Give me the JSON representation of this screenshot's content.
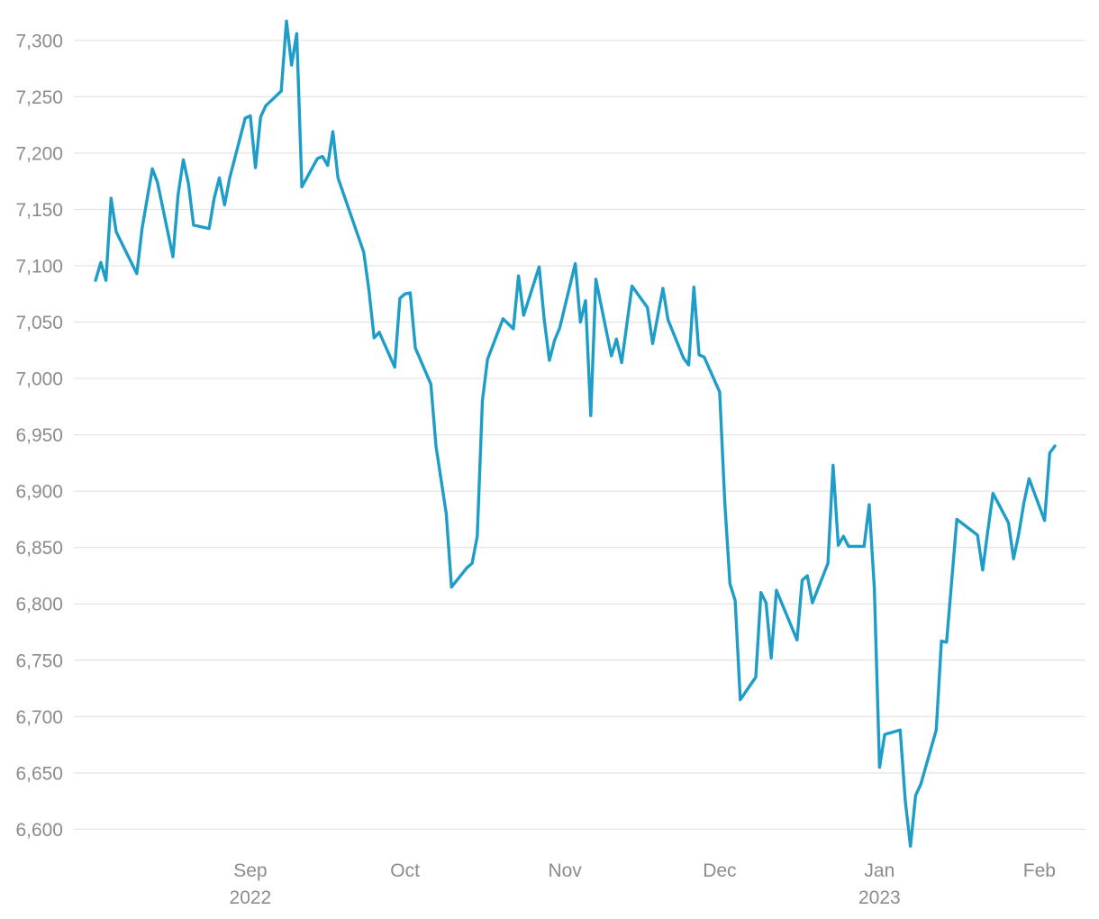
{
  "chart_data": {
    "type": "line",
    "title": "",
    "xlabel": "",
    "ylabel": "",
    "ylim": [
      6585,
      7320
    ],
    "xlim": [
      "2022-08-01",
      "2023-02-07"
    ],
    "grid": true,
    "line_color": "#1f9dc9",
    "y_ticks": [
      "6,600",
      "6,650",
      "6,700",
      "6,750",
      "6,800",
      "6,850",
      "6,900",
      "6,950",
      "7,000",
      "7,050",
      "7,100",
      "7,150",
      "7,200",
      "7,250",
      "7,300"
    ],
    "x_ticks": [
      {
        "date": "2022-09-01",
        "label": "Sep",
        "sublabel": "2022"
      },
      {
        "date": "2022-10-01",
        "label": "Oct",
        "sublabel": ""
      },
      {
        "date": "2022-11-01",
        "label": "Nov",
        "sublabel": ""
      },
      {
        "date": "2022-12-01",
        "label": "Dec",
        "sublabel": ""
      },
      {
        "date": "2023-01-01",
        "label": "Jan",
        "sublabel": "2023"
      },
      {
        "date": "2023-02-01",
        "label": "Feb",
        "sublabel": ""
      }
    ],
    "series": [
      {
        "points": [
          [
            "2022-08-02",
            7087
          ],
          [
            "2022-08-03",
            7103
          ],
          [
            "2022-08-04",
            7087
          ],
          [
            "2022-08-05",
            7160
          ],
          [
            "2022-08-06",
            7130
          ],
          [
            "2022-08-10",
            7093
          ],
          [
            "2022-08-11",
            7133
          ],
          [
            "2022-08-13",
            7186
          ],
          [
            "2022-08-14",
            7174
          ],
          [
            "2022-08-17",
            7108
          ],
          [
            "2022-08-18",
            7163
          ],
          [
            "2022-08-19",
            7194
          ],
          [
            "2022-08-20",
            7173
          ],
          [
            "2022-08-21",
            7136
          ],
          [
            "2022-08-24",
            7133
          ],
          [
            "2022-08-25",
            7160
          ],
          [
            "2022-08-26",
            7178
          ],
          [
            "2022-08-27",
            7154
          ],
          [
            "2022-08-28",
            7178
          ],
          [
            "2022-08-31",
            7231
          ],
          [
            "2022-09-01",
            7233
          ],
          [
            "2022-09-02",
            7187
          ],
          [
            "2022-09-03",
            7232
          ],
          [
            "2022-09-04",
            7242
          ],
          [
            "2022-09-07",
            7255
          ],
          [
            "2022-09-08",
            7317
          ],
          [
            "2022-09-09",
            7278
          ],
          [
            "2022-09-10",
            7306
          ],
          [
            "2022-09-11",
            7170
          ],
          [
            "2022-09-14",
            7195
          ],
          [
            "2022-09-15",
            7197
          ],
          [
            "2022-09-16",
            7189
          ],
          [
            "2022-09-17",
            7219
          ],
          [
            "2022-09-18",
            7178
          ],
          [
            "2022-09-23",
            7112
          ],
          [
            "2022-09-24",
            7078
          ],
          [
            "2022-09-25",
            7036
          ],
          [
            "2022-09-26",
            7041
          ],
          [
            "2022-09-29",
            7010
          ],
          [
            "2022-09-30",
            7071
          ],
          [
            "2022-10-01",
            7075
          ],
          [
            "2022-10-02",
            7076
          ],
          [
            "2022-10-03",
            7027
          ],
          [
            "2022-10-06",
            6995
          ],
          [
            "2022-10-07",
            6940
          ],
          [
            "2022-10-09",
            6880
          ],
          [
            "2022-10-10",
            6815
          ],
          [
            "2022-10-13",
            6832
          ],
          [
            "2022-10-14",
            6836
          ],
          [
            "2022-10-15",
            6860
          ],
          [
            "2022-10-16",
            6980
          ],
          [
            "2022-10-17",
            7017
          ],
          [
            "2022-10-20",
            7053
          ],
          [
            "2022-10-22",
            7044
          ],
          [
            "2022-10-23",
            7091
          ],
          [
            "2022-10-24",
            7056
          ],
          [
            "2022-10-27",
            7099
          ],
          [
            "2022-10-28",
            7052
          ],
          [
            "2022-10-29",
            7016
          ],
          [
            "2022-10-30",
            7034
          ],
          [
            "2022-10-31",
            7045
          ],
          [
            "2022-11-03",
            7102
          ],
          [
            "2022-11-04",
            7050
          ],
          [
            "2022-11-05",
            7069
          ],
          [
            "2022-11-06",
            6967
          ],
          [
            "2022-11-07",
            7088
          ],
          [
            "2022-11-10",
            7020
          ],
          [
            "2022-11-11",
            7035
          ],
          [
            "2022-11-12",
            7014
          ],
          [
            "2022-11-14",
            7082
          ],
          [
            "2022-11-17",
            7063
          ],
          [
            "2022-11-18",
            7031
          ],
          [
            "2022-11-20",
            7080
          ],
          [
            "2022-11-21",
            7052
          ],
          [
            "2022-11-24",
            7018
          ],
          [
            "2022-11-25",
            7012
          ],
          [
            "2022-11-26",
            7081
          ],
          [
            "2022-11-27",
            7021
          ],
          [
            "2022-11-28",
            7019
          ],
          [
            "2022-12-01",
            6988
          ],
          [
            "2022-12-02",
            6890
          ],
          [
            "2022-12-03",
            6818
          ],
          [
            "2022-12-04",
            6803
          ],
          [
            "2022-12-05",
            6715
          ],
          [
            "2022-12-08",
            6735
          ],
          [
            "2022-12-09",
            6810
          ],
          [
            "2022-12-10",
            6801
          ],
          [
            "2022-12-11",
            6752
          ],
          [
            "2022-12-12",
            6812
          ],
          [
            "2022-12-16",
            6768
          ],
          [
            "2022-12-17",
            6821
          ],
          [
            "2022-12-18",
            6825
          ],
          [
            "2022-12-19",
            6801
          ],
          [
            "2022-12-22",
            6836
          ],
          [
            "2022-12-23",
            6923
          ],
          [
            "2022-12-24",
            6852
          ],
          [
            "2022-12-25",
            6860
          ],
          [
            "2022-12-26",
            6851
          ],
          [
            "2022-12-29",
            6851
          ],
          [
            "2022-12-30",
            6888
          ],
          [
            "2022-12-31",
            6814
          ],
          [
            "2023-01-01",
            6655
          ],
          [
            "2023-01-02",
            6684
          ],
          [
            "2023-01-05",
            6688
          ],
          [
            "2023-01-06",
            6625
          ],
          [
            "2023-01-07",
            6585
          ],
          [
            "2023-01-08",
            6630
          ],
          [
            "2023-01-09",
            6640
          ],
          [
            "2023-01-12",
            6688
          ],
          [
            "2023-01-13",
            6767
          ],
          [
            "2023-01-14",
            6766
          ],
          [
            "2023-01-16",
            6875
          ],
          [
            "2023-01-20",
            6861
          ],
          [
            "2023-01-21",
            6830
          ],
          [
            "2023-01-22",
            6865
          ],
          [
            "2023-01-23",
            6898
          ],
          [
            "2023-01-26",
            6872
          ],
          [
            "2023-01-27",
            6840
          ],
          [
            "2023-01-28",
            6862
          ],
          [
            "2023-01-29",
            6890
          ],
          [
            "2023-01-30",
            6911
          ],
          [
            "2023-02-02",
            6874
          ],
          [
            "2023-02-03",
            6934
          ],
          [
            "2023-02-04",
            6940
          ]
        ]
      }
    ]
  }
}
